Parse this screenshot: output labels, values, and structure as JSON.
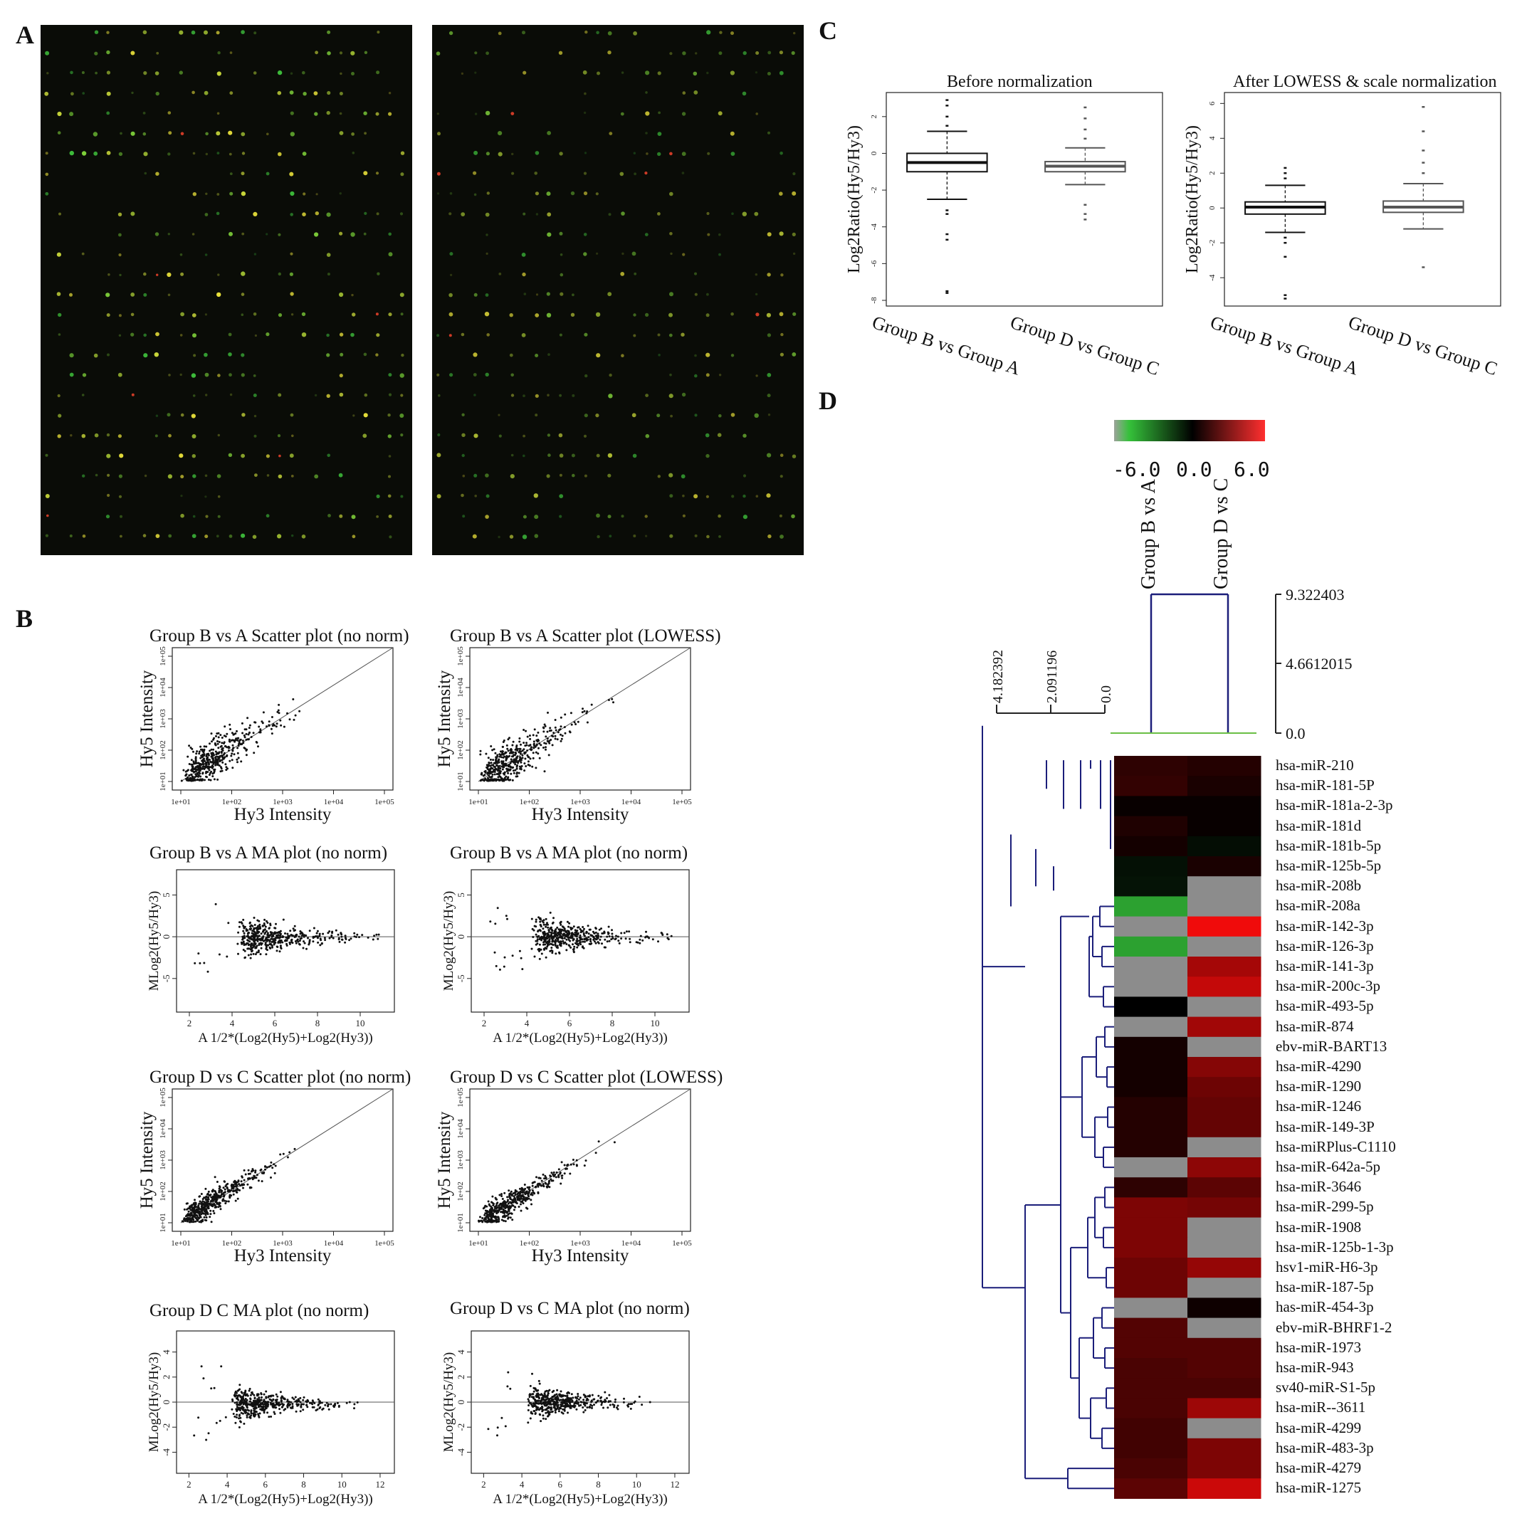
{
  "panels": {
    "A": "A",
    "B": "B",
    "C": "C",
    "D": "D"
  },
  "chart_data": [
    {
      "type": "scatter",
      "panel": "B",
      "id": "b1",
      "title": "Group B vs A Scatter plot (no norm)",
      "xlabel": "Hy3 Intensity",
      "ylabel": "Hy5 Intensity",
      "x_ticks": [
        "1e+01",
        "1e+02",
        "1e+03",
        "1e+04",
        "1e+05"
      ],
      "y_ticks": [
        "1e+01",
        "1e+02",
        "1e+03",
        "1e+04",
        "1e+05"
      ],
      "xlim": [
        1,
        5
      ],
      "ylim": [
        1,
        5
      ],
      "scale": "log10",
      "reference_line": "y=x"
    },
    {
      "type": "scatter",
      "panel": "B",
      "id": "b2",
      "title": "Group B vs A Scatter plot (LOWESS)",
      "xlabel": "Hy3 Intensity",
      "ylabel": "Hy5 Intensity",
      "x_ticks": [
        "1e+01",
        "1e+02",
        "1e+03",
        "1e+04",
        "1e+05"
      ],
      "y_ticks": [
        "1e+01",
        "1e+02",
        "1e+03",
        "1e+04",
        "1e+05"
      ],
      "xlim": [
        1,
        5
      ],
      "ylim": [
        1,
        5
      ],
      "scale": "log10",
      "reference_line": "y=x"
    },
    {
      "type": "scatter",
      "panel": "B",
      "id": "b3",
      "title": "Group B vs A MA plot (no norm)",
      "xlabel": "A 1/2*(Log2(Hy5)+Log2(Hy3))",
      "ylabel": "MLog2(Hy5/Hy3)",
      "x_ticks": [
        "2",
        "4",
        "6",
        "8",
        "10"
      ],
      "y_ticks": [
        "-5",
        "0",
        "5"
      ],
      "xlim": [
        1.8,
        11.2
      ],
      "ylim": [
        -8,
        7
      ],
      "reference_line": "y=0"
    },
    {
      "type": "scatter",
      "panel": "B",
      "id": "b4",
      "title": "Group B vs A MA plot (no norm)",
      "xlabel": "A 1/2*(Log2(Hy5)+Log2(Hy3))",
      "ylabel": "MLog2(Hy5/Hy3)",
      "x_ticks": [
        "2",
        "4",
        "6",
        "8",
        "10"
      ],
      "y_ticks": [
        "-5",
        "0",
        "5"
      ],
      "xlim": [
        1.8,
        11.2
      ],
      "ylim": [
        -8,
        7
      ],
      "reference_line": "y=0"
    },
    {
      "type": "scatter",
      "panel": "B",
      "id": "b5",
      "title": "Group D vs C Scatter plot (no norm)",
      "xlabel": "Hy3 Intensity",
      "ylabel": "Hy5 Intensity",
      "x_ticks": [
        "1e+01",
        "1e+02",
        "1e+03",
        "1e+04",
        "1e+05"
      ],
      "y_ticks": [
        "1e+01",
        "1e+02",
        "1e+03",
        "1e+04",
        "1e+05"
      ],
      "xlim": [
        1,
        5
      ],
      "ylim": [
        1,
        5
      ],
      "scale": "log10",
      "reference_line": "y=x"
    },
    {
      "type": "scatter",
      "panel": "B",
      "id": "b6",
      "title": "Group D vs C Scatter plot (LOWESS)",
      "xlabel": "Hy3 Intensity",
      "ylabel": "Hy5 Intensity",
      "x_ticks": [
        "1e+01",
        "1e+02",
        "1e+03",
        "1e+04",
        "1e+05"
      ],
      "y_ticks": [
        "1e+01",
        "1e+02",
        "1e+03",
        "1e+04",
        "1e+05"
      ],
      "xlim": [
        1,
        5
      ],
      "ylim": [
        1,
        5
      ],
      "scale": "log10",
      "reference_line": "y=x"
    },
    {
      "type": "scatter",
      "panel": "B",
      "id": "b7",
      "title": "Group  D  C MA plot (no norm)",
      "xlabel": "A 1/2*(Log2(Hy5)+Log2(Hy3))",
      "ylabel": "MLog2(Hy5/Hy3)",
      "x_ticks": [
        "2",
        "4",
        "6",
        "8",
        "10",
        "12"
      ],
      "y_ticks": [
        "-4",
        "-2",
        "0",
        "2",
        "4"
      ],
      "xlim": [
        1.8,
        12.3
      ],
      "ylim": [
        -5,
        5
      ],
      "reference_line": "y=0"
    },
    {
      "type": "scatter",
      "panel": "B",
      "id": "b8",
      "title": "Group D vs C MA plot (no norm)",
      "xlabel": "A 1/2*(Log2(Hy5)+Log2(Hy3))",
      "ylabel": "MLog2(Hy5/Hy3)",
      "x_ticks": [
        "2",
        "4",
        "6",
        "8",
        "10",
        "12"
      ],
      "y_ticks": [
        "-4",
        "-2",
        "0",
        "2",
        "4"
      ],
      "xlim": [
        1.8,
        12.3
      ],
      "ylim": [
        -5,
        5
      ],
      "reference_line": "y=0"
    },
    {
      "type": "box",
      "panel": "C",
      "id": "c1",
      "title": "Before  normalization",
      "ylabel": "Log2Ratio(Hy5/Hy3)",
      "ylim": [
        -8,
        3
      ],
      "y_ticks": [
        "-8",
        "-6",
        "-4",
        "-2",
        "0",
        "2"
      ],
      "categories": [
        "Group B vs Group A",
        "Group D vs Group C"
      ],
      "boxes": [
        {
          "q1": -1.0,
          "median": -0.5,
          "q3": 0.0,
          "whisker_low": -2.5,
          "whisker_high": 1.2,
          "outliers": [
            -7.6,
            -7.5,
            -4.7,
            -4.4,
            -3.3,
            -3.1,
            1.5,
            2.0,
            2.6,
            2.9
          ]
        },
        {
          "q1": -1.0,
          "median": -0.7,
          "q3": -0.45,
          "whisker_low": -1.7,
          "whisker_high": 0.3,
          "outliers": [
            -3.6,
            -3.3,
            -2.8,
            0.8,
            1.3,
            1.9,
            2.5
          ]
        }
      ]
    },
    {
      "type": "box",
      "panel": "C",
      "id": "c2",
      "title": "After LOWESS & scale normalization",
      "ylabel": "Log2Ratio(Hy5/Hy3)",
      "ylim": [
        -5.3,
        6.3
      ],
      "y_ticks": [
        "-4",
        "-2",
        "0",
        "2",
        "4",
        "6"
      ],
      "categories": [
        "Group B vs Group A",
        "Group D vs Group C"
      ],
      "boxes": [
        {
          "q1": -0.35,
          "median": 0.05,
          "q3": 0.35,
          "whisker_low": -1.4,
          "whisker_high": 1.3,
          "outliers": [
            -5.2,
            -5.0,
            -2.8,
            -2.0,
            -1.7,
            1.7,
            2.0,
            2.3
          ]
        },
        {
          "q1": -0.25,
          "median": 0.05,
          "q3": 0.4,
          "whisker_low": -1.2,
          "whisker_high": 1.4,
          "outliers": [
            -3.4,
            2.0,
            2.6,
            3.3,
            4.4,
            5.8
          ]
        }
      ]
    },
    {
      "type": "heatmap",
      "panel": "D",
      "id": "d1",
      "color_scale": {
        "min": -6.0,
        "mid": 0.0,
        "max": 6.0,
        "labels": [
          "-6.0",
          "0.0",
          "6.0"
        ],
        "colors": [
          "#35c13a",
          "#000000",
          "#ff2f2f"
        ]
      },
      "columns": [
        "Group B vs A",
        "Group D vs C"
      ],
      "top_dendrogram_ticks": [
        "9.322403",
        "4.6612015",
        "0.0"
      ],
      "left_dendrogram_ticks": [
        "4.182392",
        "2.091196",
        "0.0"
      ],
      "rows": [
        {
          "label": "hsa-miR-210",
          "values": [
            0.8,
            0.6
          ]
        },
        {
          "label": "hsa-miR-181-5P",
          "values": [
            0.9,
            0.4
          ]
        },
        {
          "label": "hsa-miR-181a-2-3p",
          "values": [
            0.1,
            0.1
          ]
        },
        {
          "label": "hsa-miR-181d",
          "values": [
            0.5,
            0.1
          ]
        },
        {
          "label": "hsa-miR-181b-5p",
          "values": [
            0.3,
            -0.4
          ]
        },
        {
          "label": "hsa-miR-125b-5p",
          "values": [
            -0.5,
            0.4
          ]
        },
        {
          "label": "hsa-miR-208b",
          "values": [
            -0.6,
            null
          ]
        },
        {
          "label": "hsa-miR-208a",
          "values": [
            -5.0,
            null
          ]
        },
        {
          "label": "hsa-miR-142-3p",
          "values": [
            null,
            5.6
          ]
        },
        {
          "label": "hsa-miR-126-3p",
          "values": [
            -5.0,
            null
          ]
        },
        {
          "label": "hsa-miR-141-3p",
          "values": [
            null,
            3.6
          ]
        },
        {
          "label": "hsa-miR-200c-3p",
          "values": [
            null,
            4.4
          ]
        },
        {
          "label": "hsa-miR-493-5p",
          "values": [
            0.0,
            null
          ]
        },
        {
          "label": "hsa-miR-874",
          "values": [
            null,
            3.5
          ]
        },
        {
          "label": "ebv-miR-BART13",
          "values": [
            0.3,
            null
          ]
        },
        {
          "label": "hsa-miR-4290",
          "values": [
            0.3,
            2.8
          ]
        },
        {
          "label": "hsa-miR-1290",
          "values": [
            0.3,
            2.2
          ]
        },
        {
          "label": "hsa-miR-1246",
          "values": [
            0.6,
            2.0
          ]
        },
        {
          "label": "hsa-miR-149-3P",
          "values": [
            0.6,
            2.0
          ]
        },
        {
          "label": "hsa-miRPlus-C1110",
          "values": [
            0.6,
            null
          ]
        },
        {
          "label": "hsa-miR-642a-5p",
          "values": [
            null,
            3.0
          ]
        },
        {
          "label": "hsa-miR-3646",
          "values": [
            0.8,
            1.8
          ]
        },
        {
          "label": "hsa-miR-299-5p",
          "values": [
            2.6,
            2.4
          ]
        },
        {
          "label": "hsa-miR-1908",
          "values": [
            2.6,
            null
          ]
        },
        {
          "label": "hsa-miR-125b-1-3p",
          "values": [
            2.6,
            null
          ]
        },
        {
          "label": "hsv1-miR-H6-3p",
          "values": [
            2.2,
            3.2
          ]
        },
        {
          "label": "hsa-miR-187-5p",
          "values": [
            2.2,
            null
          ]
        },
        {
          "label": "has-miR-454-3p",
          "values": [
            null,
            0.2
          ]
        },
        {
          "label": "ebv-miR-BHRF1-2",
          "values": [
            1.6,
            null
          ]
        },
        {
          "label": "hsa-miR-1973",
          "values": [
            1.6,
            1.6
          ]
        },
        {
          "label": "hsa-miR-943",
          "values": [
            1.4,
            1.6
          ]
        },
        {
          "label": "sv40-miR-S1-5p",
          "values": [
            1.4,
            1.4
          ]
        },
        {
          "label": "hsa-miR--3611",
          "values": [
            1.4,
            3.4
          ]
        },
        {
          "label": "hsa-miR-4299",
          "values": [
            1.2,
            null
          ]
        },
        {
          "label": "hsa-miR-483-3p",
          "values": [
            1.2,
            2.6
          ]
        },
        {
          "label": "hsa-miR-4279",
          "values": [
            1.4,
            2.6
          ]
        },
        {
          "label": "hsa-miR-1275",
          "values": [
            1.8,
            4.6
          ]
        }
      ]
    }
  ]
}
